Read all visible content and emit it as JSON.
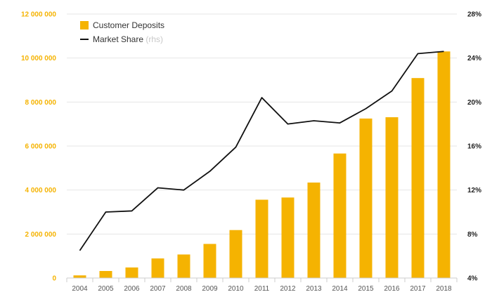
{
  "chart_data": {
    "type": "bar",
    "categories": [
      "2004",
      "2005",
      "2006",
      "2007",
      "2008",
      "2009",
      "2010",
      "2011",
      "2012",
      "2013",
      "2014",
      "2015",
      "2016",
      "2017",
      "2018"
    ],
    "series": [
      {
        "name": "Customer Deposits",
        "type": "bar",
        "axis": "left",
        "color": "#f5b301",
        "values": [
          120000,
          320000,
          480000,
          890000,
          1070000,
          1550000,
          2180000,
          3560000,
          3660000,
          4340000,
          5660000,
          7250000,
          7310000,
          9090000,
          10300000
        ]
      },
      {
        "name": "Market Share",
        "type": "line",
        "axis": "right",
        "color": "#111111",
        "values": [
          6.5,
          10.0,
          10.1,
          12.2,
          12.0,
          13.7,
          15.9,
          20.4,
          18.0,
          18.3,
          18.1,
          19.4,
          21.0,
          24.4,
          24.6
        ]
      }
    ],
    "legend": {
      "position": "top-left",
      "items": [
        {
          "label": "Customer Deposits",
          "note": ""
        },
        {
          "label": "Market Share",
          "note": "(rhs)"
        }
      ]
    },
    "y_left": {
      "lim": [
        0,
        12000000
      ],
      "ticks": [
        0,
        2000000,
        4000000,
        6000000,
        8000000,
        10000000,
        12000000
      ],
      "tick_labels": [
        "0",
        "2 000 000",
        "4 000 000",
        "6 000 000",
        "8 000 000",
        "10 000 000",
        "12 000 000"
      ],
      "color": "#f5b301"
    },
    "y_right": {
      "lim": [
        4,
        28
      ],
      "ticks": [
        4,
        8,
        12,
        16,
        20,
        24,
        28
      ],
      "tick_labels": [
        "4%",
        "8%",
        "12%",
        "16%",
        "20%",
        "24%",
        "28%"
      ],
      "color": "#222222"
    },
    "grid": true,
    "title": "",
    "xlabel": "",
    "ylabel": ""
  }
}
